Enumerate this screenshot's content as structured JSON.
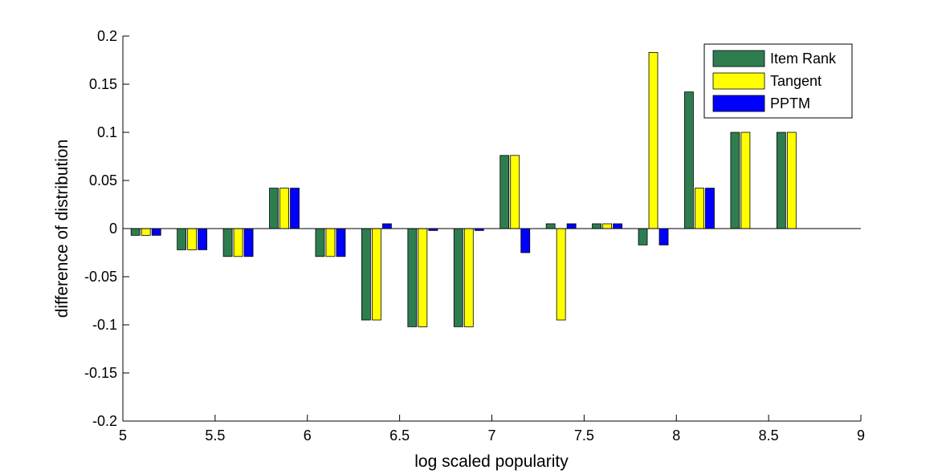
{
  "chart_data": {
    "type": "bar",
    "xlabel": "log scaled popularity",
    "ylabel": "difference of distribution",
    "xlim": [
      5,
      9
    ],
    "ylim": [
      -0.2,
      0.2
    ],
    "x_ticks": [
      "5",
      "5.5",
      "6",
      "6.5",
      "7",
      "7.5",
      "8",
      "8.5",
      "9"
    ],
    "y_ticks": [
      "-0.2",
      "-0.15",
      "-0.1",
      "-0.05",
      "0",
      "0.05",
      "0.1",
      "0.15",
      "0.2"
    ],
    "x": [
      5.125,
      5.375,
      5.625,
      5.875,
      6.125,
      6.375,
      6.625,
      6.875,
      7.125,
      7.375,
      7.625,
      7.875,
      8.125,
      8.375,
      8.625
    ],
    "series": [
      {
        "name": "Item Rank",
        "color": "#2e7d4f",
        "values": [
          -0.007,
          -0.022,
          -0.029,
          0.042,
          -0.029,
          -0.095,
          -0.102,
          -0.102,
          0.076,
          0.005,
          0.005,
          -0.017,
          0.142,
          0.1,
          0.1
        ]
      },
      {
        "name": "Tangent",
        "color": "#ffff00",
        "values": [
          -0.007,
          -0.022,
          -0.029,
          0.042,
          -0.029,
          -0.095,
          -0.102,
          -0.102,
          0.076,
          -0.095,
          0.005,
          0.183,
          0.042,
          0.1,
          0.1
        ]
      },
      {
        "name": "PPTM",
        "color": "#0000ff",
        "values": [
          -0.007,
          -0.022,
          -0.029,
          0.042,
          -0.029,
          0.005,
          -0.002,
          -0.002,
          -0.025,
          0.005,
          0.005,
          -0.017,
          0.042,
          0,
          0
        ]
      }
    ],
    "legend_position": "top-right",
    "grid": false
  }
}
